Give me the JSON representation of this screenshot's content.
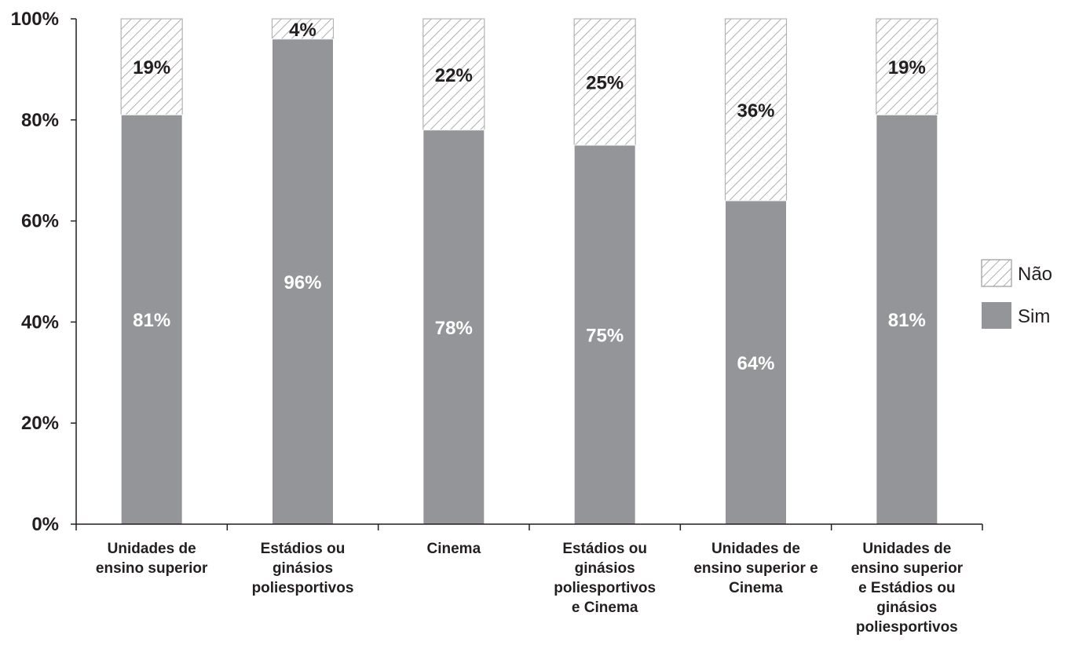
{
  "chart_data": {
    "type": "bar",
    "stacked": true,
    "categories": [
      [
        "Unidades de",
        "ensino superior"
      ],
      [
        "Estádios ou",
        "ginásios",
        "poliesportivos"
      ],
      [
        "Cinema"
      ],
      [
        "Estádios ou",
        "ginásios",
        "poliesportivos",
        "e Cinema"
      ],
      [
        "Unidades de",
        "ensino superior e",
        "Cinema"
      ],
      [
        "Unidades de",
        "ensino superior",
        "e Estádios ou",
        "ginásios",
        "poliesportivos"
      ]
    ],
    "series": [
      {
        "name": "Sim",
        "values": [
          81,
          96,
          78,
          75,
          64,
          81
        ],
        "labels": [
          "81%",
          "96%",
          "78%",
          "75%",
          "64%",
          "81%"
        ],
        "color": "#939598"
      },
      {
        "name": "Não",
        "values": [
          19,
          4,
          22,
          25,
          36,
          19
        ],
        "labels": [
          "19%",
          "4%",
          "22%",
          "25%",
          "36%",
          "19%"
        ],
        "color": "#ffffff",
        "pattern": "diagonal-hatch"
      }
    ],
    "ylim": [
      0,
      100
    ],
    "yticks": [
      "0%",
      "20%",
      "40%",
      "60%",
      "80%",
      "100%"
    ],
    "legend": "right",
    "legend_order": [
      "Não",
      "Sim"
    ],
    "grid": false,
    "title": "",
    "xlabel": "",
    "ylabel": ""
  }
}
